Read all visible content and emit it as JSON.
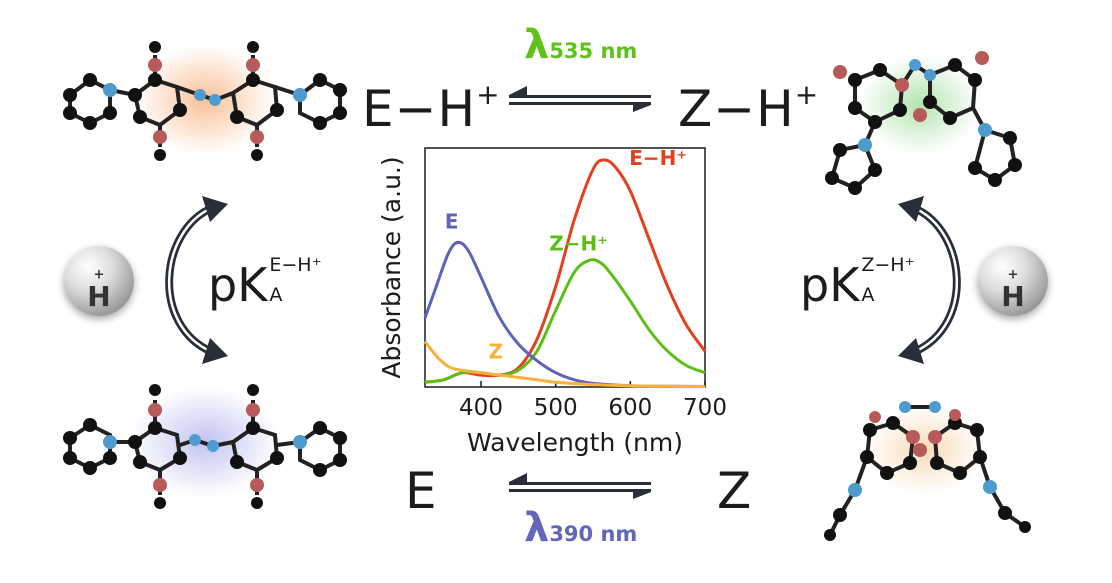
{
  "states": {
    "eh": {
      "base": "E−H",
      "sup": "+"
    },
    "zh": {
      "base": "Z−H",
      "sup": "+"
    },
    "e": {
      "base": "E"
    },
    "z": {
      "base": "Z"
    }
  },
  "wavelengths": {
    "top": {
      "symbol": "λ",
      "sub": "535 nm",
      "color": "#5fc21a"
    },
    "bottom": {
      "symbol": "λ",
      "sub": "390 nm",
      "color": "#6466b8"
    }
  },
  "pka": {
    "left": {
      "p": "p",
      "k": "K",
      "sub": "A",
      "sup": "E−H⁺"
    },
    "right": {
      "p": "p",
      "k": "K",
      "sub": "A",
      "sup": "Z−H⁺"
    }
  },
  "proton_ion": {
    "label": "H",
    "sup": "+"
  },
  "colors": {
    "red": "#e2401e",
    "green": "#5cbf16",
    "blue": "#5e62b8",
    "orange": "#f5b33b",
    "text": "#1c1c1c",
    "arrow": "#2a2e38"
  },
  "chart_data": {
    "type": "line",
    "title": "",
    "xlabel": "Wavelength (nm)",
    "ylabel": "Absorbance (a.u.)",
    "xlim": [
      325,
      700
    ],
    "ylim": [
      0,
      1.0
    ],
    "xticks": [
      400,
      500,
      600,
      700
    ],
    "grid": false,
    "series": [
      {
        "name": "E−H⁺",
        "color": "#e2401e",
        "x": [
          325,
          350,
          375,
          400,
          425,
          450,
          475,
          500,
          525,
          550,
          565,
          580,
          600,
          625,
          650,
          675,
          700
        ],
        "y": [
          0.02,
          0.03,
          0.06,
          0.05,
          0.05,
          0.08,
          0.2,
          0.42,
          0.7,
          0.91,
          0.95,
          0.92,
          0.82,
          0.62,
          0.42,
          0.26,
          0.15
        ]
      },
      {
        "name": "Z−H⁺",
        "color": "#5cbf16",
        "x": [
          325,
          350,
          375,
          400,
          425,
          450,
          475,
          500,
          525,
          545,
          560,
          575,
          600,
          625,
          650,
          675,
          700
        ],
        "y": [
          0.02,
          0.03,
          0.06,
          0.06,
          0.05,
          0.07,
          0.15,
          0.32,
          0.48,
          0.53,
          0.52,
          0.47,
          0.36,
          0.24,
          0.15,
          0.09,
          0.06
        ]
      },
      {
        "name": "E",
        "color": "#5e62b8",
        "x": [
          325,
          340,
          355,
          365,
          375,
          385,
          400,
          425,
          450,
          475,
          500,
          525,
          550,
          600,
          650,
          700
        ],
        "y": [
          0.29,
          0.42,
          0.55,
          0.6,
          0.6,
          0.56,
          0.46,
          0.29,
          0.18,
          0.11,
          0.06,
          0.03,
          0.015,
          0.005,
          0.003,
          0.002
        ]
      },
      {
        "name": "Z",
        "color": "#f5b33b",
        "x": [
          325,
          340,
          350,
          360,
          375,
          400,
          425,
          450,
          475,
          500,
          550,
          600,
          650,
          700
        ],
        "y": [
          0.19,
          0.13,
          0.1,
          0.08,
          0.07,
          0.06,
          0.05,
          0.04,
          0.03,
          0.02,
          0.01,
          0.005,
          0.003,
          0.002
        ]
      }
    ],
    "annotations": [
      {
        "text": "E−H⁺",
        "series": "E−H⁺"
      },
      {
        "text": "Z−H⁺",
        "series": "Z−H⁺"
      },
      {
        "text": "E",
        "series": "E"
      },
      {
        "text": "Z",
        "series": "Z"
      }
    ]
  }
}
